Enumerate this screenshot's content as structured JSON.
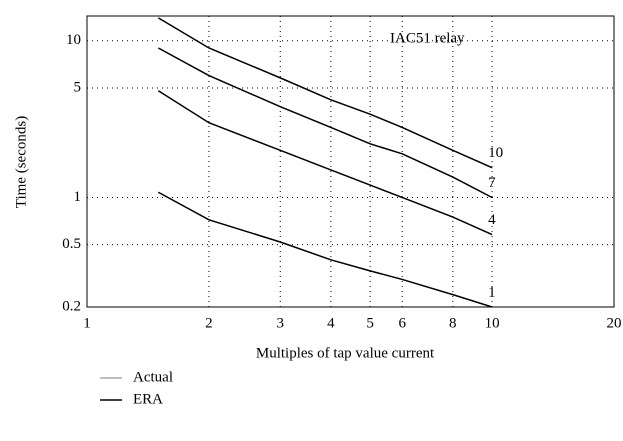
{
  "chart_data": {
    "type": "line",
    "annotation": "IAC51 relay",
    "xlabel": "Multiples of tap value current",
    "ylabel": "Time (seconds)",
    "xscale": "log",
    "yscale": "log",
    "xlim": [
      1,
      20
    ],
    "xticks": [
      1,
      2,
      3,
      4,
      5,
      6,
      8,
      10,
      20
    ],
    "ylim": [
      0.2,
      14.4
    ],
    "yticks": [
      0.2,
      0.5,
      1,
      5,
      10
    ],
    "grid": true,
    "x": [
      1.5,
      2,
      3,
      4,
      5,
      6,
      8,
      10
    ],
    "series": [
      {
        "name": "10",
        "color": "#000000",
        "values": [
          14,
          9,
          5.8,
          4.2,
          3.4,
          2.8,
          2.0,
          1.55
        ]
      },
      {
        "name": "7",
        "color": "#000000",
        "values": [
          9,
          6,
          3.8,
          2.8,
          2.2,
          1.9,
          1.35,
          1.0
        ]
      },
      {
        "name": "4",
        "color": "#000000",
        "values": [
          4.8,
          3.0,
          2.0,
          1.5,
          1.2,
          1.0,
          0.75,
          0.58
        ]
      },
      {
        "name": "1",
        "color": "#000000",
        "values": [
          1.08,
          0.72,
          0.52,
          0.4,
          0.34,
          0.3,
          0.24,
          0.2
        ]
      }
    ],
    "legend": [
      {
        "name": "Actual",
        "color": "#aaaaaa"
      },
      {
        "name": "ERA",
        "color": "#000000"
      }
    ]
  }
}
